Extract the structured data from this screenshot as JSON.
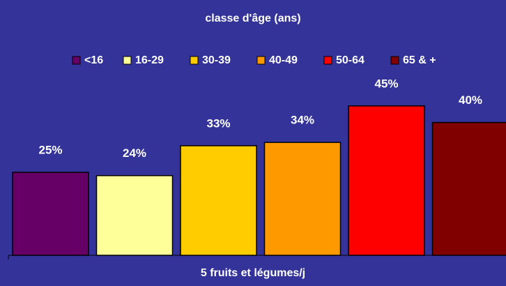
{
  "chart_data": {
    "type": "bar",
    "title": "classe d'âge (ans)",
    "categories": [
      "5 fruits et légumes/j"
    ],
    "legend": "top",
    "series": [
      {
        "name": "<16",
        "color": "#660066",
        "values": [
          25
        ],
        "value_labels": [
          "25%"
        ]
      },
      {
        "name": "16-29",
        "color": "#ffff99",
        "values": [
          24
        ],
        "value_labels": [
          "24%"
        ]
      },
      {
        "name": "30-39",
        "color": "#ffcc00",
        "values": [
          33
        ],
        "value_labels": [
          "33%"
        ]
      },
      {
        "name": "40-49",
        "color": "#ff9900",
        "values": [
          34
        ],
        "value_labels": [
          "34%"
        ]
      },
      {
        "name": "50-64",
        "color": "#ff0000",
        "values": [
          45
        ],
        "value_labels": [
          "45%"
        ]
      },
      {
        "name": "65 & +",
        "color": "#800000",
        "values": [
          40
        ],
        "value_labels": [
          "40%"
        ]
      }
    ]
  }
}
